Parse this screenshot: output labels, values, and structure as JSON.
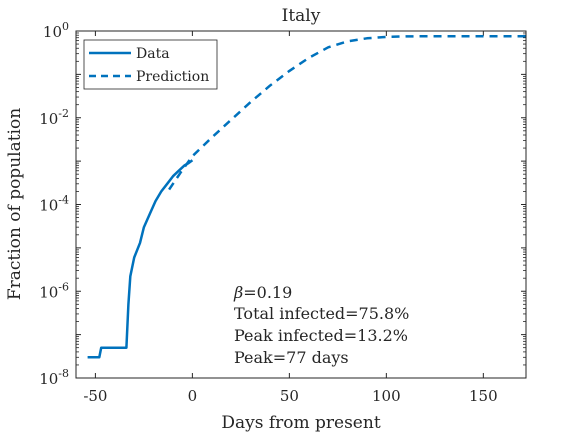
{
  "chart_data": {
    "type": "line",
    "title": "Italy",
    "xlabel": "Days from present",
    "ylabel": "Fraction of population",
    "xlim": [
      -60,
      172
    ],
    "ylim": [
      1e-08,
      1
    ],
    "yscale": "log",
    "xticks": [
      -50,
      0,
      50,
      100,
      150
    ],
    "yticks": [
      {
        "value": 1e-08,
        "base": "10",
        "exp": "-8"
      },
      {
        "value": 1e-06,
        "base": "10",
        "exp": "-6"
      },
      {
        "value": 0.0001,
        "base": "10",
        "exp": "-4"
      },
      {
        "value": 0.01,
        "base": "10",
        "exp": "-2"
      },
      {
        "value": 1,
        "base": "10",
        "exp": "0"
      }
    ],
    "xtick_labels": [
      "-50",
      "0",
      "50",
      "100",
      "150"
    ],
    "series": [
      {
        "name": "Data",
        "style": "solid",
        "color": "#0072bd",
        "x": [
          -54,
          -48,
          -47,
          -45,
          -34,
          -33,
          -32,
          -30,
          -27,
          -25,
          -22,
          -19,
          -16,
          -13,
          -10,
          -7,
          -4,
          -2,
          0
        ],
        "y": [
          3e-08,
          3e-08,
          5e-08,
          5e-08,
          5e-08,
          5e-07,
          2.2e-06,
          6e-06,
          1.3e-05,
          3e-05,
          6e-05,
          0.00012,
          0.0002,
          0.0003,
          0.00045,
          0.0006,
          0.0008,
          0.0009,
          0.00105
        ]
      },
      {
        "name": "Prediction",
        "style": "dashed",
        "color": "#0072bd",
        "x": [
          -12,
          -6,
          0,
          10,
          20,
          30,
          40,
          50,
          60,
          70,
          80,
          90,
          100,
          110,
          120,
          140,
          160,
          172
        ],
        "y": [
          0.00022,
          0.00055,
          0.0013,
          0.0035,
          0.009,
          0.023,
          0.055,
          0.12,
          0.24,
          0.42,
          0.58,
          0.68,
          0.73,
          0.75,
          0.757,
          0.758,
          0.758,
          0.758
        ]
      }
    ],
    "legend": {
      "placement": "top-left",
      "entries": [
        "Data",
        "Prediction"
      ]
    },
    "annotations": [
      {
        "symbol": "β",
        "text": "=0.19"
      },
      {
        "text": "Total infected=75.8%"
      },
      {
        "text": "Peak infected=13.2%"
      },
      {
        "text": "Peak=77 days"
      }
    ],
    "grid": false
  },
  "colors": {
    "line": "#0072bd",
    "axis": "#262626"
  }
}
